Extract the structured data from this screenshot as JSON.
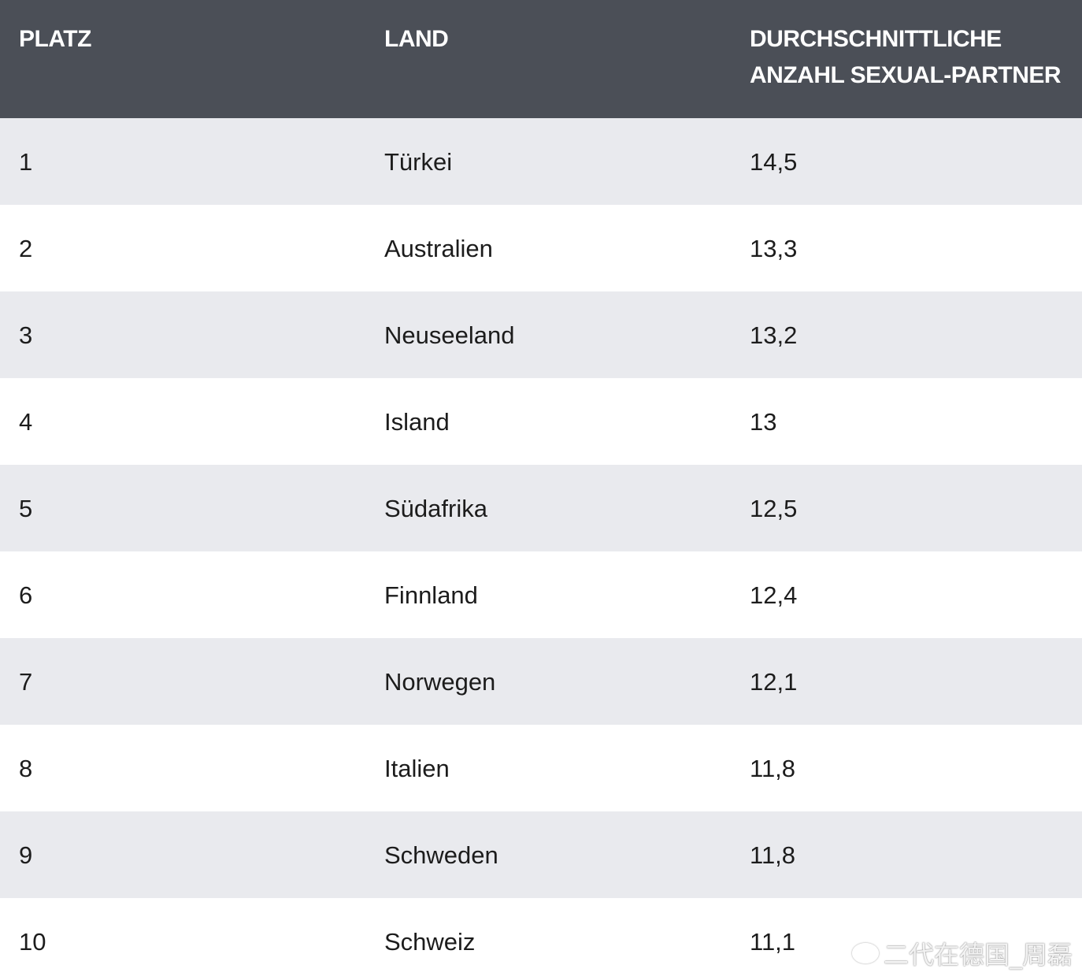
{
  "header": {
    "col_rank": "PLATZ",
    "col_country": "LAND",
    "col_value_line1": "DURCHSCHNITTLICHE",
    "col_value_line2": "ANZAHL SEXUAL-PARTNER"
  },
  "rows": [
    {
      "rank": "1",
      "country": "Türkei",
      "value": "14,5"
    },
    {
      "rank": "2",
      "country": "Australien",
      "value": "13,3"
    },
    {
      "rank": "3",
      "country": "Neuseeland",
      "value": "13,2"
    },
    {
      "rank": "4",
      "country": "Island",
      "value": "13"
    },
    {
      "rank": "5",
      "country": "Südafrika",
      "value": "12,5"
    },
    {
      "rank": "6",
      "country": "Finnland",
      "value": "12,4"
    },
    {
      "rank": "7",
      "country": "Norwegen",
      "value": "12,1"
    },
    {
      "rank": "8",
      "country": "Italien",
      "value": "11,8"
    },
    {
      "rank": "9",
      "country": "Schweden",
      "value": "11,8"
    },
    {
      "rank": "10",
      "country": "Schweiz",
      "value": "11,1"
    }
  ],
  "watermark": {
    "text": "二代在德国_周磊",
    "logo_icon": "weibo-logo-icon"
  },
  "colors": {
    "header_bg": "#4b4f57",
    "row_stripe": "#e9eaee"
  }
}
